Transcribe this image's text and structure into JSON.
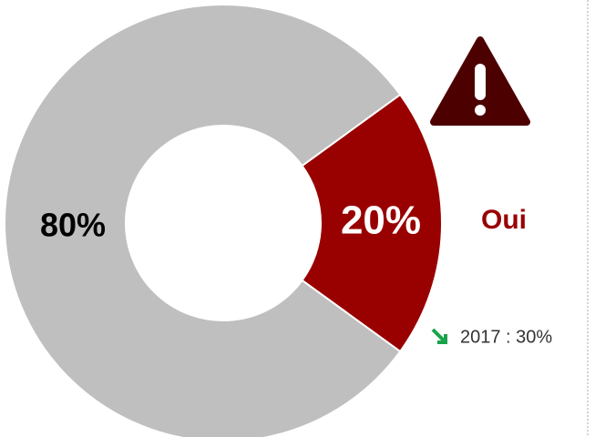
{
  "chart_data": {
    "type": "donut",
    "categories": [
      "Oui",
      null
    ],
    "values": [
      20,
      80
    ],
    "value_labels": [
      "20%",
      "80%"
    ],
    "colors": [
      "#990000",
      "#bfbfbf"
    ],
    "annotation": "2017 : 30%"
  }
}
